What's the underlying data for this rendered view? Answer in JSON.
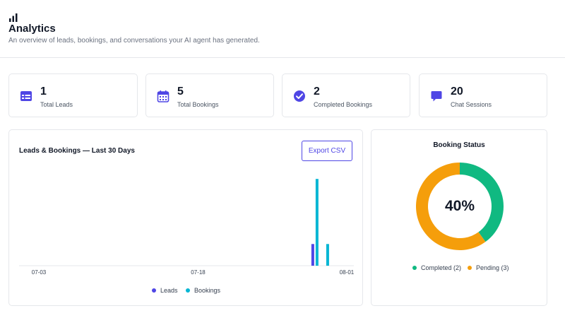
{
  "header": {
    "title": "Analytics",
    "subtitle": "An overview of leads, bookings, and conversations your AI agent has generated."
  },
  "stats": [
    {
      "value": "1",
      "label": "Total Leads",
      "icon": "table-icon"
    },
    {
      "value": "5",
      "label": "Total Bookings",
      "icon": "calendar-icon"
    },
    {
      "value": "2",
      "label": "Completed Bookings",
      "icon": "check-circle-icon"
    },
    {
      "value": "20",
      "label": "Chat Sessions",
      "icon": "chat-bubble-icon"
    }
  ],
  "colors": {
    "accent": "#4f46e5",
    "leads": "#4f46e5",
    "bookings": "#06b6d4",
    "completed": "#10b981",
    "pending": "#f59e0b"
  },
  "leads_chart": {
    "title": "Leads & Bookings — Last 30 Days",
    "export_label": "Export CSV",
    "legend": [
      "Leads",
      "Bookings"
    ],
    "chart_data": {
      "type": "bar",
      "x_tick_labels": [
        "07-03",
        "07-18",
        "08-01"
      ],
      "x_range": [
        "07-03",
        "08-01"
      ],
      "series": [
        {
          "name": "Leads",
          "points": [
            {
              "x": "07-29",
              "y": 1
            }
          ]
        },
        {
          "name": "Bookings",
          "points": [
            {
              "x": "07-29",
              "y": 4
            },
            {
              "x": "07-30",
              "y": 1
            }
          ]
        }
      ],
      "ylim": [
        0,
        4.3
      ],
      "legend_position": "bottom"
    }
  },
  "booking_status": {
    "title": "Booking Status",
    "center_label": "40%",
    "legend": [
      "Completed (2)",
      "Pending (3)"
    ],
    "chart_data": {
      "type": "pie",
      "categories": [
        "Completed",
        "Pending"
      ],
      "values": [
        2,
        3
      ],
      "legend_position": "bottom"
    }
  }
}
